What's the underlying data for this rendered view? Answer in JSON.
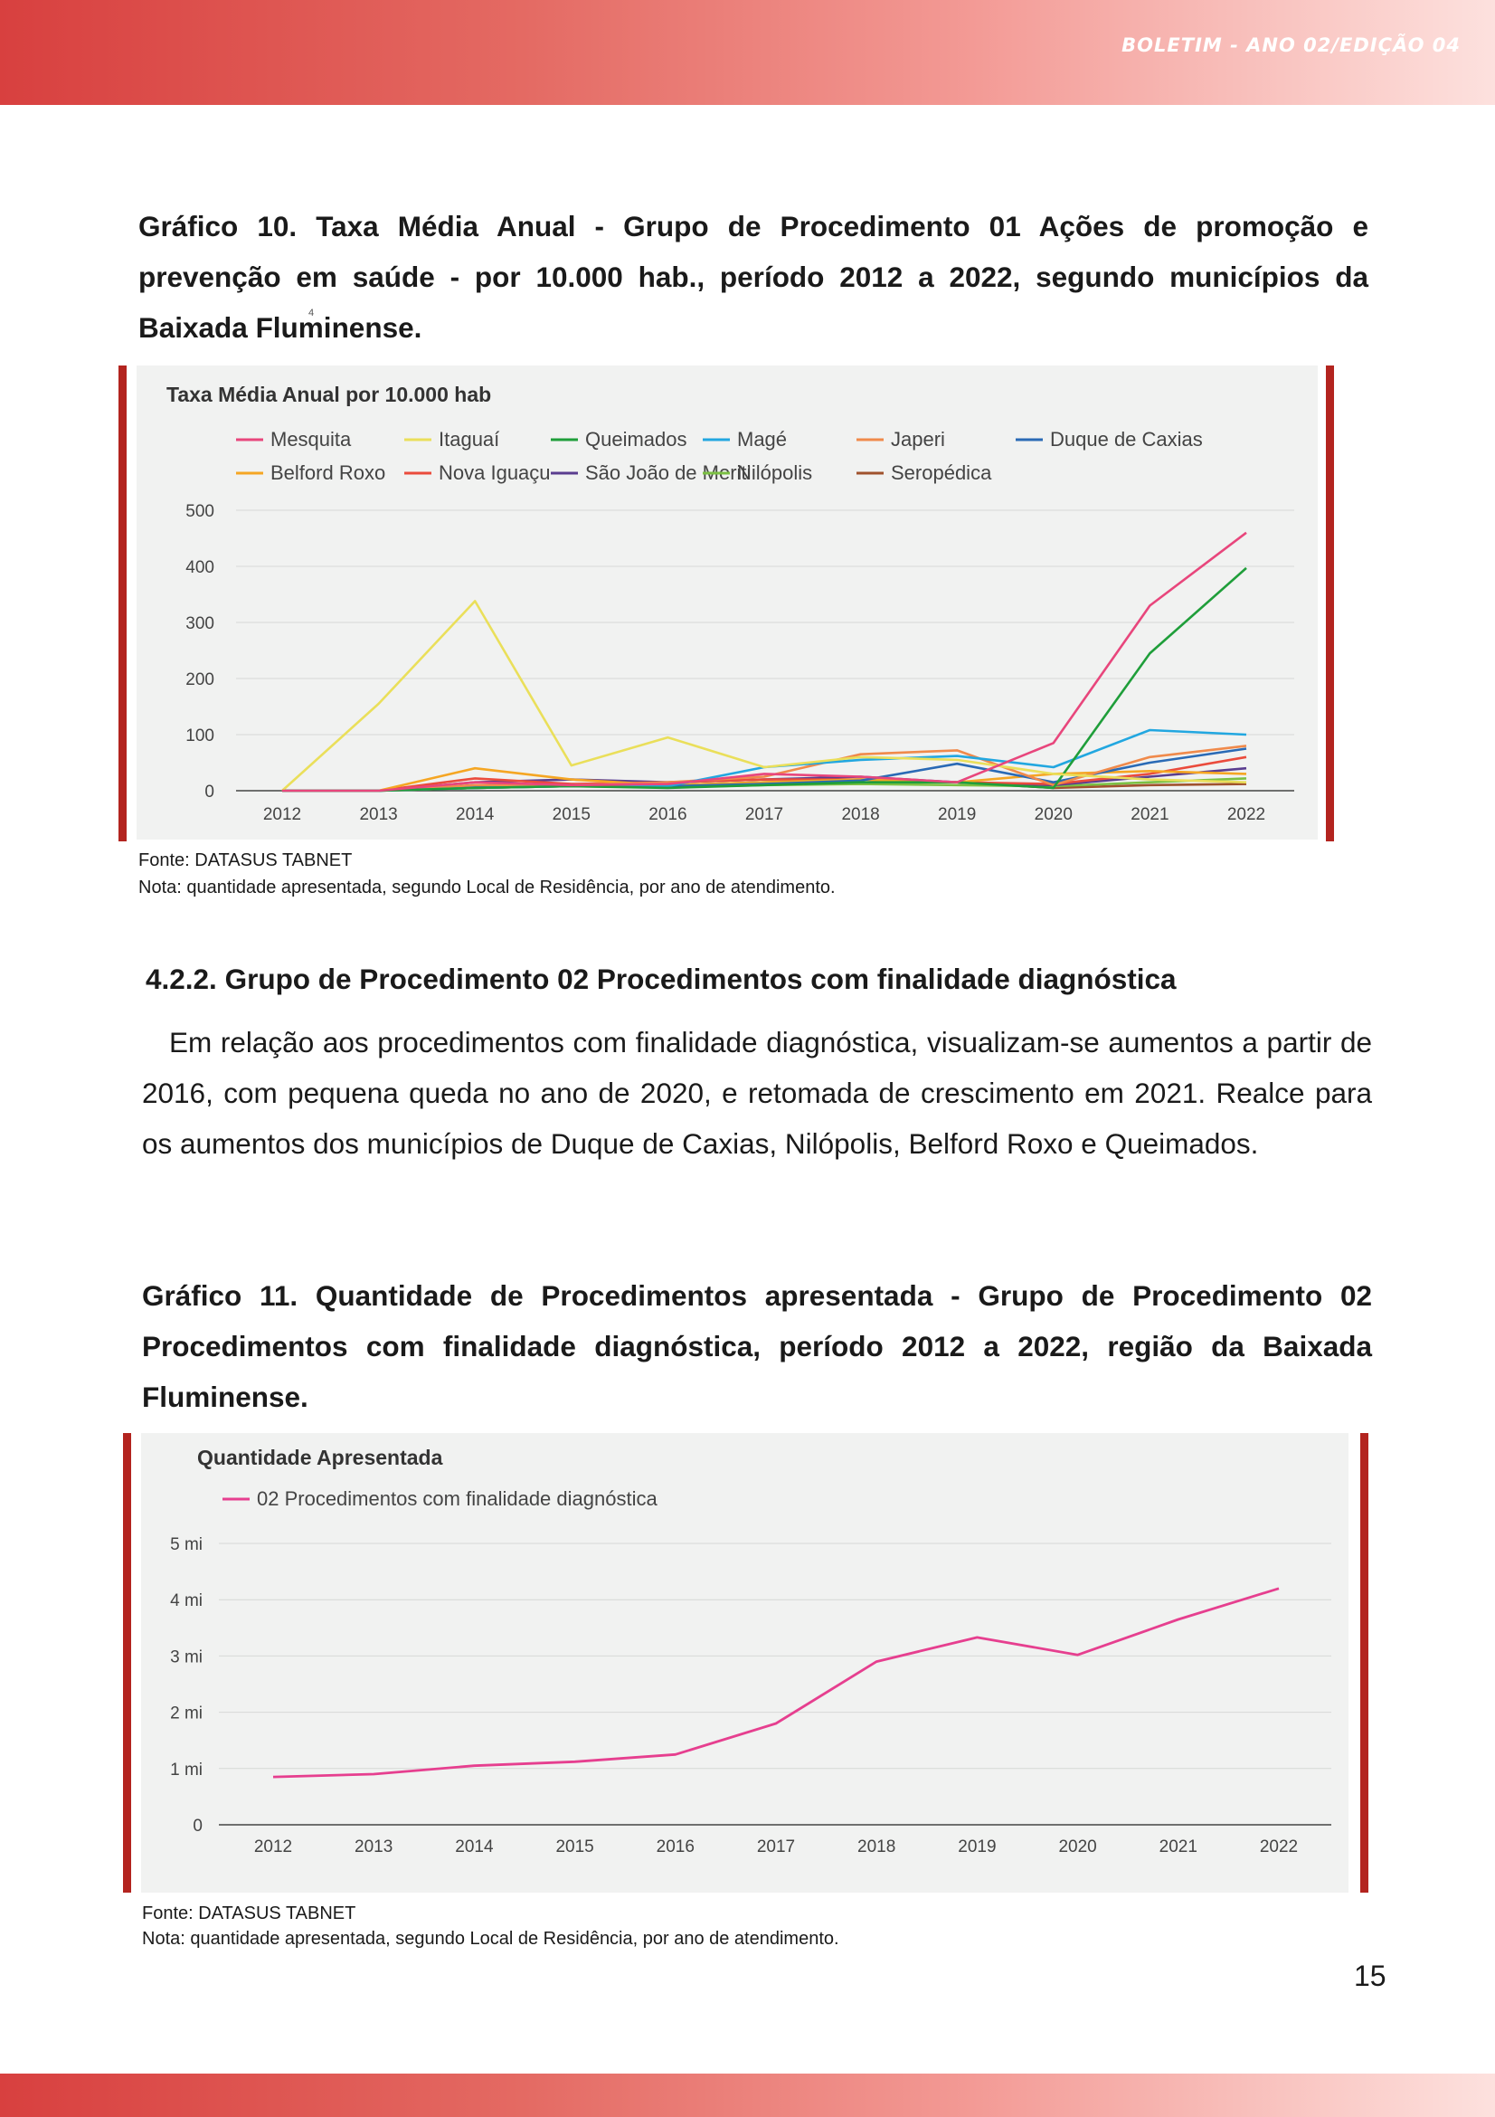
{
  "header": {
    "issue": "BOLETIM - ANO 02/EDIÇÃO 04"
  },
  "figure10": {
    "caption": "Gráfico 10. Taxa Média Anual - Grupo de Procedimento 01 Ações de promoção e prevenção em saúde - por 10.000 hab., período 2012 a 2022, segundo municípios da Baixada Fluminense.",
    "footnote_mark": "4",
    "source": "Fonte: DATASUS TABNET",
    "note": "Nota: quantidade apresentada, segundo Local de Residência, por ano de atendimento."
  },
  "section": {
    "heading": "4.2.2. Grupo de Procedimento 02 Procedimentos com finalidade diagnóstica",
    "paragraph": "Em relação aos procedimentos com finalidade diagnóstica, visualizam-se aumentos a partir de 2016, com pequena queda no ano de 2020, e retomada de crescimento em 2021. Realce para os aumentos dos municípios de Duque de Caxias, Nilópolis, Belford Roxo e Queimados."
  },
  "figure11": {
    "caption": "Gráfico 11. Quantidade de Procedimentos apresentada - Grupo de Procedimento 02 Procedimentos com finalidade diagnóstica, período 2012 a 2022, região da Baixada Fluminense.",
    "source": "Fonte: DATASUS TABNET",
    "note": "Nota: quantidade apresentada, segundo Local de Residência, por ano de atendimento."
  },
  "page_number": "15",
  "chart_data": [
    {
      "type": "line",
      "title": "Taxa Média Anual por 10.000 hab",
      "xlabel": "",
      "ylabel": "",
      "x": [
        2012,
        2013,
        2014,
        2015,
        2016,
        2017,
        2018,
        2019,
        2020,
        2021,
        2022
      ],
      "y_ticks": [
        "0",
        "100",
        "200",
        "300",
        "400",
        "500"
      ],
      "ylim": [
        0,
        500
      ],
      "grid": true,
      "legend": "top",
      "series": [
        {
          "name": "Mesquita",
          "color": "#e8467c",
          "values": [
            0,
            0,
            15,
            10,
            12,
            30,
            25,
            15,
            85,
            330,
            460
          ]
        },
        {
          "name": "Itaguaí",
          "color": "#eadf5a",
          "values": [
            0,
            155,
            338,
            45,
            95,
            42,
            60,
            55,
            30,
            20,
            15
          ]
        },
        {
          "name": "Queimados",
          "color": "#1f9e3a",
          "values": [
            0,
            0,
            5,
            8,
            5,
            10,
            15,
            15,
            5,
            245,
            397
          ]
        },
        {
          "name": "Magé",
          "color": "#22a7e0",
          "values": [
            0,
            0,
            5,
            8,
            8,
            42,
            55,
            62,
            42,
            108,
            100
          ]
        },
        {
          "name": "Japeri",
          "color": "#f08a4b",
          "values": [
            0,
            0,
            10,
            10,
            15,
            25,
            65,
            72,
            10,
            60,
            80
          ]
        },
        {
          "name": "Duque de Caxias",
          "color": "#2a6ab5",
          "values": [
            0,
            0,
            8,
            10,
            8,
            12,
            18,
            48,
            15,
            50,
            75
          ]
        },
        {
          "name": "Belford Roxo",
          "color": "#f5a623",
          "values": [
            0,
            0,
            40,
            20,
            10,
            15,
            20,
            15,
            30,
            35,
            30
          ]
        },
        {
          "name": "Nova Iguaçu",
          "color": "#ea4b3c",
          "values": [
            0,
            0,
            22,
            12,
            15,
            20,
            20,
            15,
            12,
            30,
            60
          ]
        },
        {
          "name": "São João de Meriti",
          "color": "#5a3d8f",
          "values": [
            0,
            0,
            15,
            20,
            15,
            20,
            25,
            15,
            10,
            25,
            40
          ]
        },
        {
          "name": "Nilópolis",
          "color": "#7bc043",
          "values": [
            0,
            0,
            5,
            8,
            6,
            10,
            12,
            10,
            8,
            15,
            22
          ]
        },
        {
          "name": "Seropédica",
          "color": "#a0522d",
          "values": [
            0,
            0,
            5,
            8,
            10,
            15,
            20,
            15,
            5,
            10,
            12
          ]
        }
      ]
    },
    {
      "type": "line",
      "title": "Quantidade Apresentada",
      "xlabel": "",
      "ylabel": "",
      "x": [
        2012,
        2013,
        2014,
        2015,
        2016,
        2017,
        2018,
        2019,
        2020,
        2021,
        2022
      ],
      "y_ticks": [
        "0",
        "1 mi",
        "2 mi",
        "3 mi",
        "4 mi",
        "5 mi"
      ],
      "ylim": [
        0,
        5000000
      ],
      "grid": true,
      "legend": "top-left",
      "series": [
        {
          "name": "02 Procedimentos com finalidade diagnóstica",
          "color": "#e63f8f",
          "values": [
            850000,
            900000,
            1050000,
            1120000,
            1250000,
            1800000,
            2900000,
            3330000,
            3020000,
            3650000,
            4200000
          ]
        }
      ]
    }
  ]
}
